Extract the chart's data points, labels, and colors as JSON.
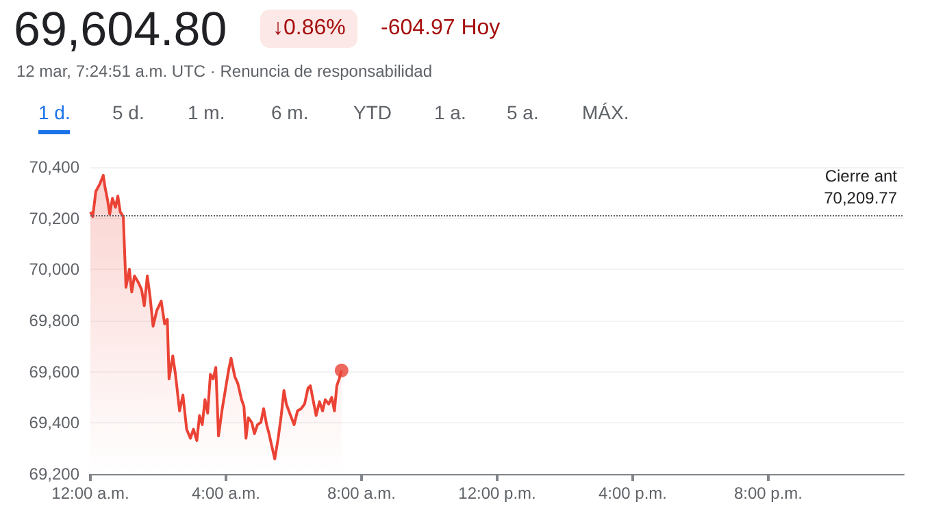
{
  "chart_data": {
    "type": "area",
    "title": "69,604.80",
    "subtitle": "12 mar, 7:24:51 a.m. UTC · Renuncia de responsabilidad",
    "annotations": [
      "↓0.86%",
      "-604.97 Hoy",
      "1 d.",
      "5 d.",
      "1 m.",
      "6 m.",
      "YTD",
      "1 a.",
      "5 a.",
      "MÁX."
    ],
    "xlim": [
      0,
      24
    ],
    "xticks": [
      {
        "value": 0,
        "label": "12:00 a.m."
      },
      {
        "value": 4,
        "label": "4:00 a.m."
      },
      {
        "value": 8,
        "label": "8:00 a.m."
      },
      {
        "value": 12,
        "label": "12:00 p.m."
      },
      {
        "value": 16,
        "label": "4:00 p.m."
      },
      {
        "value": 20,
        "label": "8:00 p.m."
      }
    ],
    "ylim": [
      69200,
      70400
    ],
    "yticks": [
      {
        "value": 69200,
        "label": "69,200"
      },
      {
        "value": 69400,
        "label": "69,400"
      },
      {
        "value": 69600,
        "label": "69,600"
      },
      {
        "value": 69800,
        "label": "69,800"
      },
      {
        "value": 70000,
        "label": "70,000"
      },
      {
        "value": 70200,
        "label": "70,200"
      },
      {
        "value": 70400,
        "label": "70,400"
      }
    ],
    "grid": "y",
    "marker": "none",
    "line_style": "solid",
    "ref_lines": [
      {
        "axis": "y",
        "value": 70209.77,
        "label": "Cierre ant\n70,209.77",
        "color": "#5f6368",
        "line_style": "dotted"
      }
    ],
    "series": [
      {
        "color": "#ea4335",
        "x": [
          0,
          0.07,
          0.16,
          0.27,
          0.38,
          0.43,
          0.51,
          0.57,
          0.65,
          0.74,
          0.81,
          0.88,
          0.97,
          1.05,
          1.15,
          1.22,
          1.3,
          1.42,
          1.51,
          1.59,
          1.68,
          1.76,
          1.85,
          1.96,
          2.09,
          2.19,
          2.27,
          2.32,
          2.43,
          2.51,
          2.63,
          2.73,
          2.84,
          2.95,
          3.04,
          3.14,
          3.22,
          3.3,
          3.38,
          3.46,
          3.54,
          3.62,
          3.7,
          3.78,
          3.88,
          3.99,
          4.08,
          4.15,
          4.26,
          4.35,
          4.46,
          4.53,
          4.59,
          4.66,
          4.76,
          4.84,
          4.93,
          5.03,
          5.11,
          5.2,
          5.27,
          5.36,
          5.44,
          5.54,
          5.63,
          5.71,
          5.78,
          5.88,
          6.01,
          6.11,
          6.22,
          6.32,
          6.42,
          6.49,
          6.58,
          6.66,
          6.76,
          6.85,
          6.93,
          7.03,
          7.12,
          7.2,
          7.27,
          7.34,
          7.41
        ],
        "values": [
          70225,
          70207,
          70305,
          70332,
          70368,
          70323,
          70269,
          70216,
          70278,
          70243,
          70287,
          70225,
          70207,
          69930,
          70001,
          69912,
          69975,
          69948,
          69921,
          69858,
          69975,
          69894,
          69778,
          69840,
          69876,
          69787,
          69805,
          69572,
          69662,
          69590,
          69447,
          69509,
          69375,
          69340,
          69375,
          69331,
          69429,
          69393,
          69491,
          69438,
          69590,
          69572,
          69617,
          69349,
          69447,
          69536,
          69608,
          69653,
          69581,
          69554,
          69491,
          69465,
          69340,
          69420,
          69402,
          69358,
          69393,
          69402,
          69456,
          69393,
          69358,
          69304,
          69259,
          69340,
          69429,
          69527,
          69474,
          69438,
          69393,
          69447,
          69456,
          69474,
          69536,
          69545,
          69483,
          69429,
          69483,
          69447,
          69491,
          69474,
          69500,
          69447,
          69545,
          69572,
          69605
        ]
      },
      {
        "type": "scatter",
        "marker": "circle",
        "color": "#ea4335",
        "x": [
          7.41
        ],
        "values": [
          69605
        ]
      }
    ]
  }
}
